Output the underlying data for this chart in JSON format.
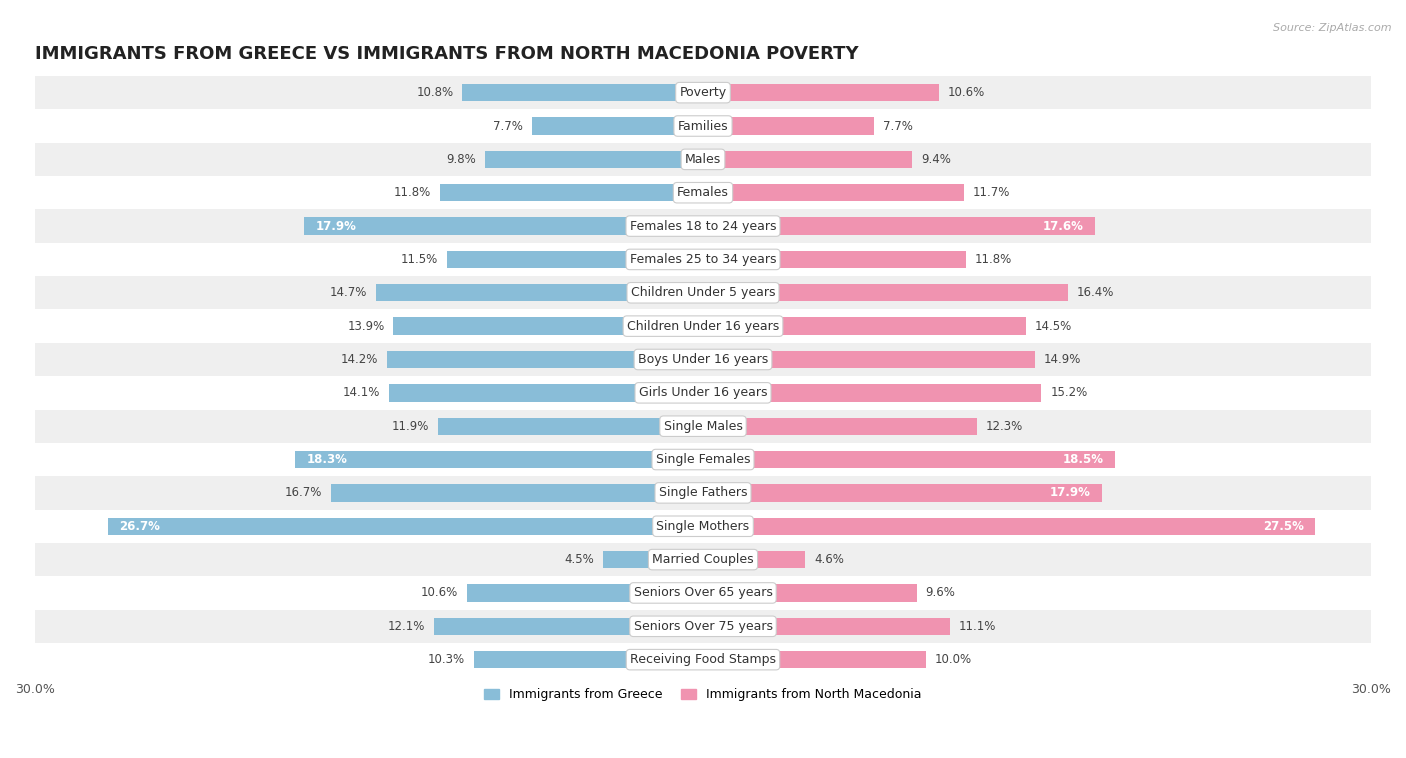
{
  "title": "IMMIGRANTS FROM GREECE VS IMMIGRANTS FROM NORTH MACEDONIA POVERTY",
  "source": "Source: ZipAtlas.com",
  "categories": [
    "Poverty",
    "Families",
    "Males",
    "Females",
    "Females 18 to 24 years",
    "Females 25 to 34 years",
    "Children Under 5 years",
    "Children Under 16 years",
    "Boys Under 16 years",
    "Girls Under 16 years",
    "Single Males",
    "Single Females",
    "Single Fathers",
    "Single Mothers",
    "Married Couples",
    "Seniors Over 65 years",
    "Seniors Over 75 years",
    "Receiving Food Stamps"
  ],
  "greece_values": [
    10.8,
    7.7,
    9.8,
    11.8,
    17.9,
    11.5,
    14.7,
    13.9,
    14.2,
    14.1,
    11.9,
    18.3,
    16.7,
    26.7,
    4.5,
    10.6,
    12.1,
    10.3
  ],
  "macedonia_values": [
    10.6,
    7.7,
    9.4,
    11.7,
    17.6,
    11.8,
    16.4,
    14.5,
    14.9,
    15.2,
    12.3,
    18.5,
    17.9,
    27.5,
    4.6,
    9.6,
    11.1,
    10.0
  ],
  "greece_color": "#89bdd8",
  "macedonia_color": "#f093b0",
  "greece_label": "Immigrants from Greece",
  "macedonia_label": "Immigrants from North Macedonia",
  "bar_height": 0.52,
  "xlim": 30.0,
  "background_color": "#ffffff",
  "row_even_color": "#efefef",
  "row_odd_color": "#ffffff",
  "title_fontsize": 13,
  "cat_fontsize": 9,
  "value_fontsize": 8.5,
  "source_fontsize": 8,
  "greece_inside_threshold": 17.0,
  "macedonia_inside_threshold": 17.0
}
